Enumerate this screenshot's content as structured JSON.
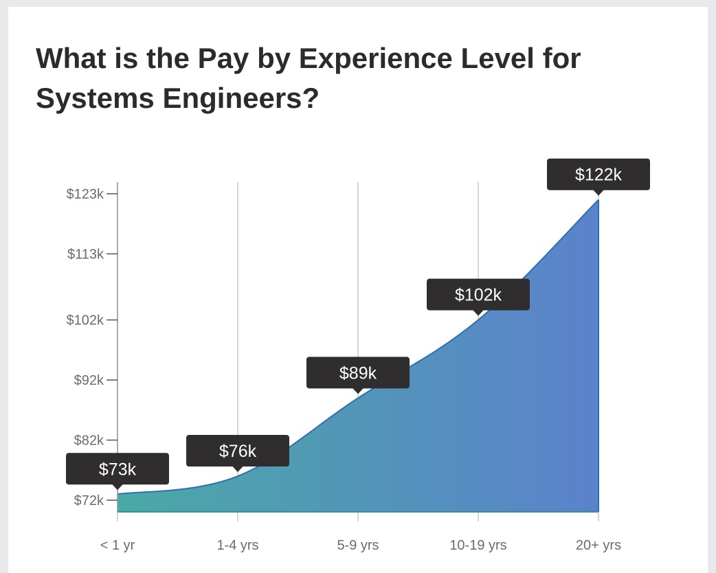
{
  "chart_data": {
    "type": "area",
    "title": "What is the Pay by Experience Level for Systems Engineers?",
    "xlabel": "",
    "ylabel": "",
    "categories": [
      "< 1 yr",
      "1-4 yrs",
      "5-9 yrs",
      "10-19 yrs",
      "20+ yrs"
    ],
    "values": [
      73,
      76,
      89,
      102,
      122
    ],
    "value_labels": [
      "$73k",
      "$76k",
      "$89k",
      "$102k",
      "$122k"
    ],
    "y_ticks": [
      72,
      82,
      92,
      102,
      113,
      123
    ],
    "y_tick_labels": [
      "$72k",
      "$82k",
      "$92k",
      "$102k",
      "$113k",
      "$123k"
    ],
    "ylim": [
      72,
      123
    ],
    "grid": "vertical",
    "legend": "none",
    "colors": {
      "gradient_start": "#4aa9a5",
      "gradient_end": "#5b82cc",
      "line": "#2f6fb0",
      "label_bg": "#2f2d2d",
      "gridline": "#c8c8c8",
      "axis": "#555555"
    }
  }
}
